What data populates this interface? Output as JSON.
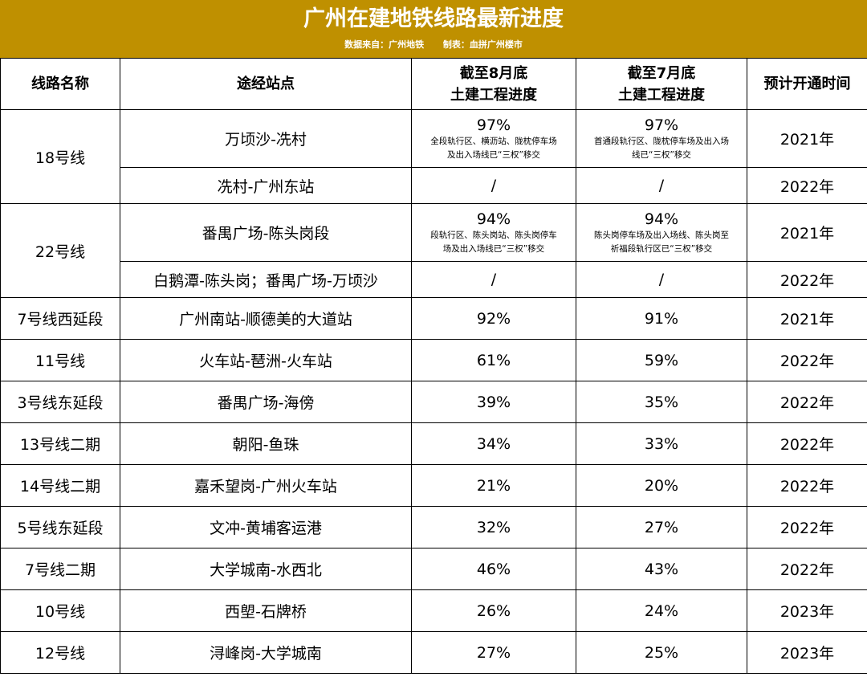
{
  "header": {
    "title": "广州在建地铁线路最新进度",
    "source": "数据来自：广州地铁",
    "author": "制表：血拼广州楼市"
  },
  "columns": {
    "line_name": "线路名称",
    "stations": "途经站点",
    "aug_progress_1": "截至8月底",
    "aug_progress_2": "土建工程进度",
    "jul_progress_1": "截至7月底",
    "jul_progress_2": "土建工程进度",
    "opening": "预计开通时间"
  },
  "groups": [
    {
      "line": "18号线",
      "rows": [
        {
          "stations": "万顷沙-冼村",
          "aug": "97%",
          "aug_note": [
            "全段轨行区、横沥站、陇枕停车场",
            "及出入场线已“三权”移交"
          ],
          "jul": "97%",
          "jul_note": [
            "首通段轨行区、陇枕停车场及出入场",
            "线已“三权”移交"
          ],
          "open": "2021年"
        },
        {
          "stations": "冼村-广州东站",
          "aug": "/",
          "jul": "/",
          "open": "2022年"
        }
      ]
    },
    {
      "line": "22号线",
      "rows": [
        {
          "stations": "番禺广场-陈头岗段",
          "aug": "94%",
          "aug_note": [
            "段轨行区、陈头岗站、陈头岗停车",
            "场及出入场线已“三权”移交"
          ],
          "jul": "94%",
          "jul_note": [
            "陈头岗停车场及出入场线、陈头岗至",
            "祈福段轨行区已“三权”移交"
          ],
          "open": "2021年"
        },
        {
          "stations": "白鹅潭-陈头岗；番禺广场-万顷沙",
          "aug": "/",
          "jul": "/",
          "open": "2022年"
        }
      ]
    }
  ],
  "rows": [
    {
      "line": "7号线西延段",
      "stations": "广州南站-顺德美的大道站",
      "aug": "92%",
      "jul": "91%",
      "open": "2021年"
    },
    {
      "line": "11号线",
      "stations": "火车站-琶洲-火车站",
      "aug": "61%",
      "jul": "59%",
      "open": "2022年"
    },
    {
      "line": "3号线东延段",
      "stations": "番禺广场-海傍",
      "aug": "39%",
      "jul": "35%",
      "open": "2022年"
    },
    {
      "line": "13号线二期",
      "stations": "朝阳-鱼珠",
      "aug": "34%",
      "jul": "33%",
      "open": "2022年"
    },
    {
      "line": "14号线二期",
      "stations": "嘉禾望岗-广州火车站",
      "aug": "21%",
      "jul": "20%",
      "open": "2022年"
    },
    {
      "line": "5号线东延段",
      "stations": "文冲-黄埔客运港",
      "aug": "32%",
      "jul": "27%",
      "open": "2022年"
    },
    {
      "line": "7号线二期",
      "stations": "大学城南-水西北",
      "aug": "46%",
      "jul": "43%",
      "open": "2022年"
    },
    {
      "line": "10号线",
      "stations": "西塱-石牌桥",
      "aug": "26%",
      "jul": "24%",
      "open": "2023年"
    },
    {
      "line": "12号线",
      "stations": "浔峰岗-大学城南",
      "aug": "27%",
      "jul": "25%",
      "open": "2023年"
    }
  ]
}
